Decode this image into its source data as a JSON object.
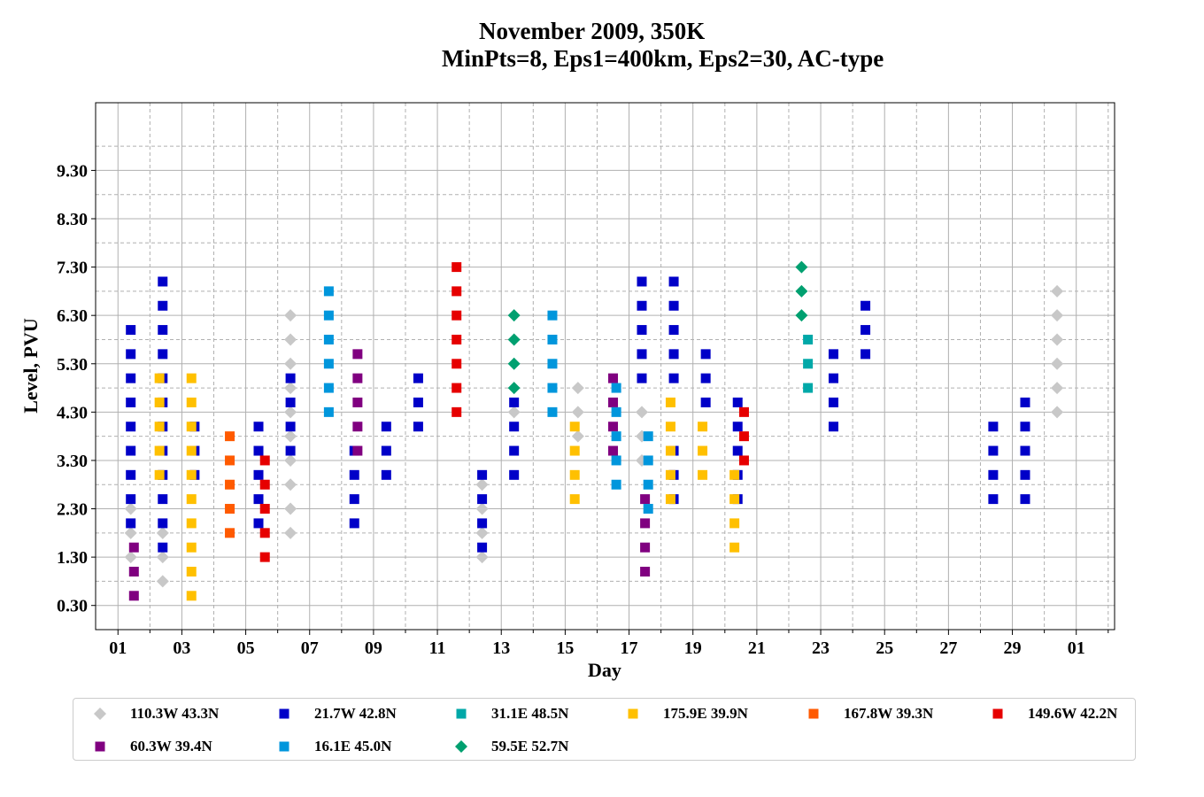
{
  "chart_data": {
    "type": "scatter",
    "title": "November 2009, 350K",
    "subtitle": "MinPts=8, Eps1=400km, Eps2=30, AC-type",
    "xlabel": "Day",
    "ylabel": "Level, PVU",
    "x_tick_labels": [
      "01",
      "03",
      "05",
      "07",
      "09",
      "11",
      "13",
      "15",
      "17",
      "19",
      "21",
      "23",
      "25",
      "27",
      "29",
      "01"
    ],
    "y_tick_labels": [
      "0.30",
      "1.30",
      "2.30",
      "3.30",
      "4.30",
      "5.30",
      "6.30",
      "7.30",
      "8.30",
      "9.30"
    ],
    "xlim": [
      0.3,
      32.2
    ],
    "ylim": [
      -0.2,
      10.7
    ],
    "grid": true,
    "legend_position": "bottom",
    "series": [
      {
        "name": "110.3W 43.3N",
        "marker": "diamond",
        "color": "#c8c8c8",
        "points": [
          [
            1.4,
            1.3
          ],
          [
            1.4,
            1.8
          ],
          [
            1.4,
            2.3
          ],
          [
            2.4,
            0.8
          ],
          [
            2.4,
            1.3
          ],
          [
            2.4,
            1.8
          ],
          [
            6.4,
            1.8
          ],
          [
            6.4,
            2.3
          ],
          [
            6.4,
            2.8
          ],
          [
            6.4,
            3.3
          ],
          [
            6.4,
            3.8
          ],
          [
            6.4,
            4.3
          ],
          [
            6.4,
            4.8
          ],
          [
            6.4,
            5.3
          ],
          [
            6.4,
            5.8
          ],
          [
            6.4,
            6.3
          ],
          [
            12.4,
            1.3
          ],
          [
            12.4,
            1.8
          ],
          [
            12.4,
            2.3
          ],
          [
            12.4,
            2.8
          ],
          [
            13.4,
            4.3
          ],
          [
            15.4,
            3.8
          ],
          [
            15.4,
            4.3
          ],
          [
            15.4,
            4.8
          ],
          [
            17.4,
            3.3
          ],
          [
            17.4,
            3.8
          ],
          [
            17.4,
            4.3
          ],
          [
            30.4,
            4.3
          ],
          [
            30.4,
            4.8
          ],
          [
            30.4,
            5.3
          ],
          [
            30.4,
            5.8
          ],
          [
            30.4,
            6.3
          ],
          [
            30.4,
            6.8
          ]
        ]
      },
      {
        "name": "21.7W 42.8N",
        "marker": "square",
        "color": "#0000c8",
        "points": [
          [
            1.4,
            2.0
          ],
          [
            1.4,
            2.5
          ],
          [
            1.4,
            3.0
          ],
          [
            1.4,
            3.5
          ],
          [
            1.4,
            4.0
          ],
          [
            1.4,
            4.5
          ],
          [
            1.4,
            5.0
          ],
          [
            1.4,
            5.5
          ],
          [
            1.4,
            6.0
          ],
          [
            2.4,
            1.5
          ],
          [
            2.4,
            2.0
          ],
          [
            2.4,
            2.5
          ],
          [
            2.4,
            3.0
          ],
          [
            2.4,
            3.5
          ],
          [
            2.4,
            4.0
          ],
          [
            2.4,
            4.5
          ],
          [
            2.4,
            5.0
          ],
          [
            2.4,
            5.5
          ],
          [
            2.4,
            6.0
          ],
          [
            2.4,
            6.5
          ],
          [
            2.4,
            7.0
          ],
          [
            3.4,
            3.0
          ],
          [
            3.4,
            3.5
          ],
          [
            3.4,
            4.0
          ],
          [
            5.4,
            2.0
          ],
          [
            5.4,
            2.5
          ],
          [
            5.4,
            3.0
          ],
          [
            5.4,
            3.5
          ],
          [
            5.4,
            4.0
          ],
          [
            6.4,
            3.5
          ],
          [
            6.4,
            4.0
          ],
          [
            6.4,
            4.5
          ],
          [
            6.4,
            5.0
          ],
          [
            8.4,
            2.0
          ],
          [
            8.4,
            2.5
          ],
          [
            8.4,
            3.0
          ],
          [
            8.4,
            3.5
          ],
          [
            9.4,
            3.0
          ],
          [
            9.4,
            3.5
          ],
          [
            9.4,
            4.0
          ],
          [
            10.4,
            4.0
          ],
          [
            10.4,
            4.5
          ],
          [
            10.4,
            5.0
          ],
          [
            12.4,
            1.5
          ],
          [
            12.4,
            2.0
          ],
          [
            12.4,
            2.5
          ],
          [
            12.4,
            3.0
          ],
          [
            13.4,
            3.0
          ],
          [
            13.4,
            3.5
          ],
          [
            13.4,
            4.0
          ],
          [
            13.4,
            4.5
          ],
          [
            17.4,
            5.0
          ],
          [
            17.4,
            5.5
          ],
          [
            17.4,
            6.0
          ],
          [
            17.4,
            6.5
          ],
          [
            17.4,
            7.0
          ],
          [
            18.4,
            2.5
          ],
          [
            18.4,
            3.0
          ],
          [
            18.4,
            3.5
          ],
          [
            18.4,
            5.0
          ],
          [
            18.4,
            5.5
          ],
          [
            18.4,
            6.0
          ],
          [
            18.4,
            6.5
          ],
          [
            18.4,
            7.0
          ],
          [
            19.4,
            4.5
          ],
          [
            19.4,
            5.0
          ],
          [
            19.4,
            5.5
          ],
          [
            20.4,
            2.5
          ],
          [
            20.4,
            3.0
          ],
          [
            20.4,
            3.5
          ],
          [
            20.4,
            4.0
          ],
          [
            20.4,
            4.5
          ],
          [
            23.4,
            4.0
          ],
          [
            23.4,
            4.5
          ],
          [
            23.4,
            5.0
          ],
          [
            23.4,
            5.5
          ],
          [
            24.4,
            5.5
          ],
          [
            24.4,
            6.0
          ],
          [
            24.4,
            6.5
          ],
          [
            28.4,
            2.5
          ],
          [
            28.4,
            3.0
          ],
          [
            28.4,
            3.5
          ],
          [
            28.4,
            4.0
          ],
          [
            29.4,
            2.5
          ],
          [
            29.4,
            3.0
          ],
          [
            29.4,
            3.5
          ],
          [
            29.4,
            4.0
          ],
          [
            29.4,
            4.5
          ]
        ]
      },
      {
        "name": "31.1E 48.5N",
        "marker": "square",
        "color": "#00a8a8",
        "points": [
          [
            22.6,
            4.8
          ],
          [
            22.6,
            5.3
          ],
          [
            22.6,
            5.8
          ]
        ]
      },
      {
        "name": "175.9E 39.9N",
        "marker": "square",
        "color": "#ffc000",
        "points": [
          [
            2.3,
            3.0
          ],
          [
            2.3,
            3.5
          ],
          [
            2.3,
            4.0
          ],
          [
            2.3,
            4.5
          ],
          [
            2.3,
            5.0
          ],
          [
            3.3,
            0.5
          ],
          [
            3.3,
            1.0
          ],
          [
            3.3,
            1.5
          ],
          [
            3.3,
            2.0
          ],
          [
            3.3,
            2.5
          ],
          [
            3.3,
            3.0
          ],
          [
            3.3,
            3.5
          ],
          [
            3.3,
            4.0
          ],
          [
            3.3,
            4.5
          ],
          [
            3.3,
            5.0
          ],
          [
            15.3,
            2.5
          ],
          [
            15.3,
            3.0
          ],
          [
            15.3,
            3.5
          ],
          [
            15.3,
            4.0
          ],
          [
            18.3,
            2.5
          ],
          [
            18.3,
            3.0
          ],
          [
            18.3,
            3.5
          ],
          [
            18.3,
            4.0
          ],
          [
            18.3,
            4.5
          ],
          [
            19.3,
            3.0
          ],
          [
            19.3,
            3.5
          ],
          [
            19.3,
            4.0
          ],
          [
            20.3,
            1.5
          ],
          [
            20.3,
            2.0
          ],
          [
            20.3,
            2.5
          ],
          [
            20.3,
            3.0
          ]
        ]
      },
      {
        "name": "167.8W 39.3N",
        "marker": "square",
        "color": "#ff5a00",
        "points": [
          [
            4.5,
            1.8
          ],
          [
            4.5,
            2.3
          ],
          [
            4.5,
            2.8
          ],
          [
            4.5,
            3.3
          ],
          [
            4.5,
            3.8
          ]
        ]
      },
      {
        "name": "149.6W 42.2N",
        "marker": "square",
        "color": "#e60000",
        "points": [
          [
            5.6,
            1.3
          ],
          [
            5.6,
            1.8
          ],
          [
            5.6,
            2.3
          ],
          [
            5.6,
            2.8
          ],
          [
            5.6,
            3.3
          ],
          [
            11.6,
            4.3
          ],
          [
            11.6,
            4.8
          ],
          [
            11.6,
            5.3
          ],
          [
            11.6,
            5.8
          ],
          [
            11.6,
            6.3
          ],
          [
            11.6,
            6.8
          ],
          [
            11.6,
            7.3
          ],
          [
            20.6,
            3.3
          ],
          [
            20.6,
            3.8
          ],
          [
            20.6,
            4.3
          ]
        ]
      },
      {
        "name": "60.3W 39.4N",
        "marker": "square",
        "color": "#800080",
        "points": [
          [
            1.5,
            0.5
          ],
          [
            1.5,
            1.0
          ],
          [
            1.5,
            1.5
          ],
          [
            8.5,
            3.5
          ],
          [
            8.5,
            4.0
          ],
          [
            8.5,
            4.5
          ],
          [
            8.5,
            5.0
          ],
          [
            8.5,
            5.5
          ],
          [
            16.5,
            3.5
          ],
          [
            16.5,
            4.0
          ],
          [
            16.5,
            4.5
          ],
          [
            16.5,
            5.0
          ],
          [
            17.5,
            1.0
          ],
          [
            17.5,
            1.5
          ],
          [
            17.5,
            2.0
          ],
          [
            17.5,
            2.5
          ]
        ]
      },
      {
        "name": "16.1E 45.0N",
        "marker": "square",
        "color": "#0096dc",
        "points": [
          [
            7.6,
            4.3
          ],
          [
            7.6,
            4.8
          ],
          [
            7.6,
            5.3
          ],
          [
            7.6,
            5.8
          ],
          [
            7.6,
            6.3
          ],
          [
            7.6,
            6.8
          ],
          [
            14.6,
            4.3
          ],
          [
            14.6,
            4.8
          ],
          [
            14.6,
            5.3
          ],
          [
            14.6,
            5.8
          ],
          [
            14.6,
            6.3
          ],
          [
            16.6,
            2.8
          ],
          [
            16.6,
            3.3
          ],
          [
            16.6,
            3.8
          ],
          [
            16.6,
            4.3
          ],
          [
            16.6,
            4.8
          ],
          [
            17.6,
            2.3
          ],
          [
            17.6,
            2.8
          ],
          [
            17.6,
            3.3
          ],
          [
            17.6,
            3.8
          ]
        ]
      },
      {
        "name": "59.5E 52.7N",
        "marker": "diamond",
        "color": "#00a070",
        "points": [
          [
            13.4,
            4.8
          ],
          [
            13.4,
            5.3
          ],
          [
            13.4,
            5.8
          ],
          [
            13.4,
            6.3
          ],
          [
            22.4,
            6.3
          ],
          [
            22.4,
            6.8
          ],
          [
            22.4,
            7.3
          ]
        ]
      }
    ]
  }
}
